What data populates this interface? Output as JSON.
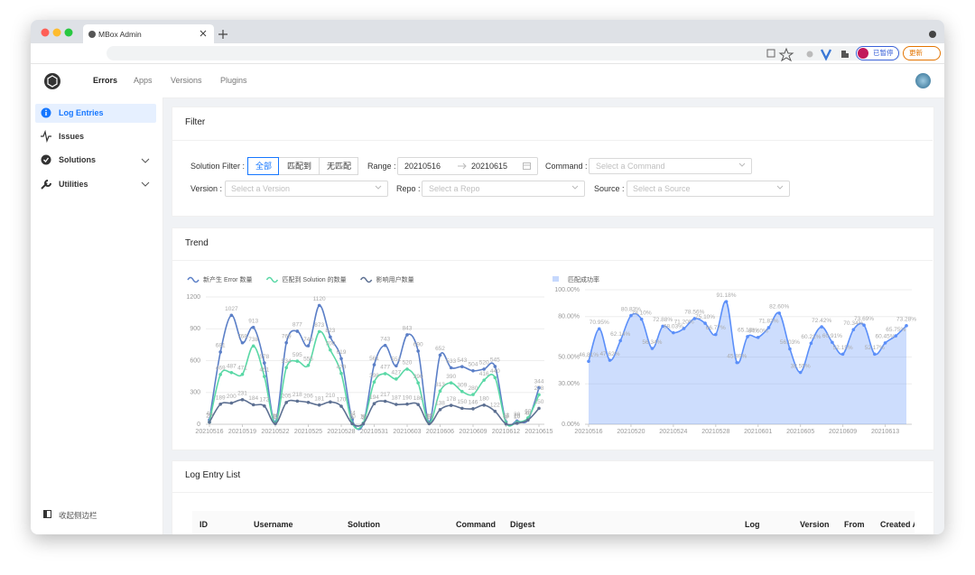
{
  "browser": {
    "tab_title": "MBox Admin",
    "paused": "已暂停",
    "update": "更新"
  },
  "nav": {
    "items": [
      "Errors",
      "Apps",
      "Versions",
      "Plugins"
    ]
  },
  "sidebar": {
    "items": [
      "Log Entries",
      "Issues",
      "Solutions",
      "Utilities"
    ],
    "collapse": "收起侧边栏"
  },
  "filter": {
    "title": "Filter",
    "solution_label": "Solution Filter :",
    "solution_options": [
      "全部",
      "匹配到",
      "无匹配"
    ],
    "range_label": "Range :",
    "range_start": "20210516",
    "range_end": "20210615",
    "command_label": "Command :",
    "command_placeholder": "Select a Command",
    "version_label": "Version :",
    "version_placeholder": "Select a Version",
    "repo_label": "Repo :",
    "repo_placeholder": "Select a Repo",
    "source_label": "Source :",
    "source_placeholder": "Select a Source"
  },
  "trend": {
    "title": "Trend"
  },
  "log_list": {
    "title": "Log Entry List",
    "columns": [
      "ID",
      "Username",
      "Solution",
      "Command",
      "Digest",
      "Log",
      "Version",
      "From",
      "Created At"
    ]
  },
  "chart_data": [
    {
      "type": "line",
      "categories": [
        "20210516",
        null,
        null,
        "20210519",
        null,
        null,
        "20210522",
        null,
        null,
        "20210525",
        null,
        null,
        "20210528",
        null,
        null,
        "20210531",
        null,
        null,
        "20210603",
        null,
        null,
        "20210606",
        null,
        null,
        "20210609",
        null,
        null,
        "20210612",
        null,
        null,
        "20210615"
      ],
      "series": [
        {
          "name": "新产生 Error 数量",
          "color": "#5b7fc7",
          "values": [
            40,
            681,
            1027,
            768,
            913,
            578,
            20,
            769,
            877,
            740,
            1120,
            823,
            619,
            44,
            3,
            561,
            743,
            551,
            843,
            690,
            20,
            652,
            533,
            543,
            504,
            520,
            545,
            23,
            30,
            40,
            344
          ]
        },
        {
          "name": "匹配到 Solution 的数量",
          "color": "#5ad8a6",
          "values": [
            20,
            469,
            487,
            471,
            738,
            451,
            10,
            534,
            595,
            555,
            873,
            700,
            479,
            10,
            10,
            398,
            477,
            427,
            520,
            390,
            10,
            313,
            390,
            309,
            280,
            416,
            440,
            15,
            20,
            60,
            278
          ]
        },
        {
          "name": "影响用户数量",
          "color": "#5d7092",
          "values": [
            20,
            189,
            200,
            231,
            184,
            172,
            5,
            205,
            218,
            206,
            181,
            210,
            170,
            5,
            5,
            194,
            217,
            187,
            190,
            186,
            5,
            138,
            178,
            150,
            146,
            180,
            122,
            3,
            10,
            40,
            150
          ]
        }
      ],
      "ylim": [
        0,
        1200
      ],
      "yticks": [
        0,
        300,
        600,
        900,
        1200
      ],
      "grid": true
    },
    {
      "type": "area",
      "categories": [
        "20210516",
        null,
        null,
        null,
        "20210520",
        null,
        null,
        null,
        "20210524",
        null,
        null,
        null,
        "20210528",
        null,
        null,
        null,
        "20210601",
        null,
        null,
        null,
        "20210605",
        null,
        null,
        null,
        "20210609",
        null,
        null,
        null,
        "20210613",
        null,
        null
      ],
      "series": [
        {
          "name": "匹配成功率",
          "color": "#5b8ff9",
          "values": [
            46.81,
            70.95,
            47.62,
            62.14,
            80.83,
            78.1,
            56.34,
            72.88,
            68.03,
            71.2,
            78.56,
            75.1,
            66.77,
            91.18,
            45.89,
            65.13,
            64.6,
            71.83,
            82.6,
            56.03,
            38.55,
            60.21,
            72.42,
            60.91,
            52.15,
            70.34,
            73.69,
            52.17,
            60.45,
            65.75,
            73.28
          ],
          "value_labels": [
            "46.81%",
            "70.95%",
            "47.62%",
            "62.14%",
            "80.83%",
            "78.10%",
            "56.34%",
            "72.88%",
            "68.03%",
            "71.20%",
            "78.56%",
            "75.10%",
            "66.77%",
            "91.18%",
            "45.89%",
            "65.13%",
            "64.60%",
            "71.83%",
            "82.60%",
            "56.03%",
            "38.55%",
            "60.21%",
            "72.42%",
            "60.91%",
            "52.15%",
            "70.34%",
            "73.69%",
            "52.17%",
            "60.45%",
            "65.75%",
            "73.28%"
          ]
        }
      ],
      "ylim": [
        0,
        100
      ],
      "yticks": [
        {
          "value": 0,
          "label": "0.00%"
        },
        {
          "value": 30,
          "label": "30.00%"
        },
        {
          "value": 50,
          "label": "50.00%"
        },
        {
          "value": 80,
          "label": "80.00%"
        },
        {
          "value": 100,
          "label": "100.00%"
        }
      ],
      "grid": true
    }
  ]
}
